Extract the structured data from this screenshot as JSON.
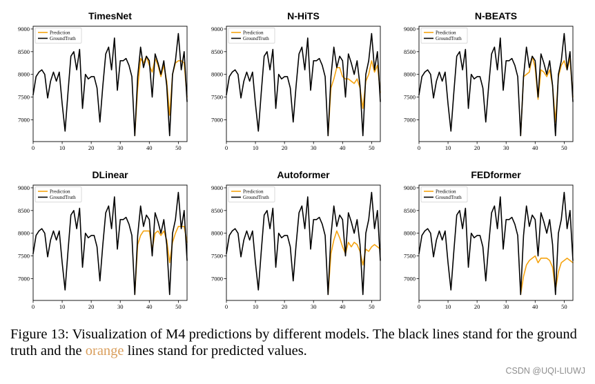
{
  "colors": {
    "prediction": "#f5a30f",
    "ground_truth": "#000000",
    "caption_highlight": "#d99e5c",
    "watermark": "#8e8e8e"
  },
  "chart_data": [
    {
      "type": "line",
      "title": "TimesNet",
      "xlim": [
        0,
        53
      ],
      "ylim": [
        6520,
        9060
      ],
      "xticks": [
        0,
        10,
        20,
        30,
        40,
        50
      ],
      "yticks": [
        7000,
        7500,
        8000,
        8500,
        9000
      ],
      "grid": false,
      "legend_loc": "upper-left",
      "series": [
        {
          "name": "Prediction",
          "color": "#f5a30f",
          "x": [
            35,
            36,
            37,
            38,
            39,
            40,
            41,
            42,
            43,
            44,
            45,
            46,
            47,
            48,
            49,
            50,
            51,
            52,
            53
          ],
          "values": [
            6650,
            7700,
            8350,
            8250,
            8400,
            8200,
            8050,
            8350,
            8200,
            7950,
            8200,
            7850,
            7100,
            8000,
            8250,
            8300,
            8300,
            8250,
            7500
          ]
        },
        {
          "name": "GroundTruth",
          "color": "#000000",
          "x": [
            0,
            1,
            2,
            3,
            4,
            5,
            6,
            7,
            8,
            9,
            10,
            11,
            12,
            13,
            14,
            15,
            16,
            17,
            18,
            19,
            20,
            21,
            22,
            23,
            24,
            25,
            26,
            27,
            28,
            29,
            30,
            31,
            32,
            33,
            34,
            35,
            36,
            37,
            38,
            39,
            40,
            41,
            42,
            43,
            44,
            45,
            46,
            47,
            48,
            49,
            50,
            51,
            52,
            53
          ],
          "values": [
            7550,
            7950,
            8050,
            8100,
            8000,
            7480,
            7850,
            8050,
            7850,
            8050,
            7350,
            6750,
            7600,
            8400,
            8500,
            8100,
            8550,
            7250,
            8000,
            7900,
            7950,
            7950,
            7700,
            6950,
            7750,
            8450,
            8600,
            8100,
            8800,
            7650,
            8300,
            8300,
            8350,
            8200,
            7950,
            6650,
            7950,
            8600,
            8150,
            8400,
            8300,
            7500,
            8450,
            8250,
            8000,
            8300,
            7750,
            6650,
            8000,
            8300,
            8900,
            8100,
            8500,
            7400
          ]
        }
      ]
    },
    {
      "type": "line",
      "title": "N-HiTS",
      "xlim": [
        0,
        53
      ],
      "ylim": [
        6520,
        9060
      ],
      "xticks": [
        0,
        10,
        20,
        30,
        40,
        50
      ],
      "yticks": [
        7000,
        7500,
        8000,
        8500,
        9000
      ],
      "grid": false,
      "legend_loc": "upper-left",
      "series": [
        {
          "name": "Prediction",
          "color": "#f5a30f",
          "x": [
            35,
            36,
            37,
            38,
            39,
            40,
            41,
            42,
            43,
            44,
            45,
            46,
            47,
            48,
            49,
            50,
            51,
            52,
            53
          ],
          "values": [
            6650,
            7700,
            7900,
            8150,
            8150,
            7950,
            7900,
            7900,
            7850,
            7800,
            7900,
            7700,
            7250,
            7850,
            8000,
            8300,
            8050,
            8200,
            7600
          ]
        },
        {
          "name": "GroundTruth",
          "color": "#000000",
          "x": [
            0,
            1,
            2,
            3,
            4,
            5,
            6,
            7,
            8,
            9,
            10,
            11,
            12,
            13,
            14,
            15,
            16,
            17,
            18,
            19,
            20,
            21,
            22,
            23,
            24,
            25,
            26,
            27,
            28,
            29,
            30,
            31,
            32,
            33,
            34,
            35,
            36,
            37,
            38,
            39,
            40,
            41,
            42,
            43,
            44,
            45,
            46,
            47,
            48,
            49,
            50,
            51,
            52,
            53
          ],
          "values": [
            7550,
            7950,
            8050,
            8100,
            8000,
            7480,
            7850,
            8050,
            7850,
            8050,
            7350,
            6750,
            7600,
            8400,
            8500,
            8100,
            8550,
            7250,
            8000,
            7900,
            7950,
            7950,
            7700,
            6950,
            7750,
            8450,
            8600,
            8100,
            8800,
            7650,
            8300,
            8300,
            8350,
            8200,
            7950,
            6650,
            7950,
            8600,
            8150,
            8400,
            8300,
            7500,
            8450,
            8250,
            8000,
            8300,
            7750,
            6650,
            8000,
            8300,
            8900,
            8100,
            8500,
            7400
          ]
        }
      ]
    },
    {
      "type": "line",
      "title": "N-BEATS",
      "xlim": [
        0,
        53
      ],
      "ylim": [
        6520,
        9060
      ],
      "xticks": [
        0,
        10,
        20,
        30,
        40,
        50
      ],
      "yticks": [
        7000,
        7500,
        8000,
        8500,
        9000
      ],
      "grid": false,
      "legend_loc": "upper-left",
      "series": [
        {
          "name": "Prediction",
          "color": "#f5a30f",
          "x": [
            35,
            36,
            37,
            38,
            39,
            40,
            41,
            42,
            43,
            44,
            45,
            46,
            47,
            48,
            49,
            50,
            51,
            52,
            53
          ],
          "values": [
            6650,
            7950,
            8000,
            8050,
            8400,
            8150,
            7450,
            8100,
            8050,
            7950,
            8100,
            7750,
            6950,
            7950,
            8200,
            8300,
            8100,
            8350,
            7500
          ]
        },
        {
          "name": "GroundTruth",
          "color": "#000000",
          "x": [
            0,
            1,
            2,
            3,
            4,
            5,
            6,
            7,
            8,
            9,
            10,
            11,
            12,
            13,
            14,
            15,
            16,
            17,
            18,
            19,
            20,
            21,
            22,
            23,
            24,
            25,
            26,
            27,
            28,
            29,
            30,
            31,
            32,
            33,
            34,
            35,
            36,
            37,
            38,
            39,
            40,
            41,
            42,
            43,
            44,
            45,
            46,
            47,
            48,
            49,
            50,
            51,
            52,
            53
          ],
          "values": [
            7550,
            7950,
            8050,
            8100,
            8000,
            7480,
            7850,
            8050,
            7850,
            8050,
            7350,
            6750,
            7600,
            8400,
            8500,
            8100,
            8550,
            7250,
            8000,
            7900,
            7950,
            7950,
            7700,
            6950,
            7750,
            8450,
            8600,
            8100,
            8800,
            7650,
            8300,
            8300,
            8350,
            8200,
            7950,
            6650,
            7950,
            8600,
            8150,
            8400,
            8300,
            7500,
            8450,
            8250,
            8000,
            8300,
            7750,
            6650,
            8000,
            8300,
            8900,
            8100,
            8500,
            7400
          ]
        }
      ]
    },
    {
      "type": "line",
      "title": "DLinear",
      "xlim": [
        0,
        53
      ],
      "ylim": [
        6520,
        9060
      ],
      "xticks": [
        0,
        10,
        20,
        30,
        40,
        50
      ],
      "yticks": [
        7000,
        7500,
        8000,
        8500,
        9000
      ],
      "grid": false,
      "legend_loc": "upper-left",
      "series": [
        {
          "name": "Prediction",
          "color": "#f5a30f",
          "x": [
            35,
            36,
            37,
            38,
            39,
            40,
            41,
            42,
            43,
            44,
            45,
            46,
            47,
            48,
            49,
            50,
            51,
            52,
            53
          ],
          "values": [
            6650,
            7750,
            7950,
            8050,
            8050,
            8050,
            7650,
            8000,
            8050,
            7950,
            8050,
            7850,
            7350,
            7800,
            8000,
            8150,
            8150,
            8150,
            7800
          ]
        },
        {
          "name": "GroundTruth",
          "color": "#000000",
          "x": [
            0,
            1,
            2,
            3,
            4,
            5,
            6,
            7,
            8,
            9,
            10,
            11,
            12,
            13,
            14,
            15,
            16,
            17,
            18,
            19,
            20,
            21,
            22,
            23,
            24,
            25,
            26,
            27,
            28,
            29,
            30,
            31,
            32,
            33,
            34,
            35,
            36,
            37,
            38,
            39,
            40,
            41,
            42,
            43,
            44,
            45,
            46,
            47,
            48,
            49,
            50,
            51,
            52,
            53
          ],
          "values": [
            7550,
            7950,
            8050,
            8100,
            8000,
            7480,
            7850,
            8050,
            7850,
            8050,
            7350,
            6750,
            7600,
            8400,
            8500,
            8100,
            8550,
            7250,
            8000,
            7900,
            7950,
            7950,
            7700,
            6950,
            7750,
            8450,
            8600,
            8100,
            8800,
            7650,
            8300,
            8300,
            8350,
            8200,
            7950,
            6650,
            7950,
            8600,
            8150,
            8400,
            8300,
            7500,
            8450,
            8250,
            8000,
            8300,
            7750,
            6650,
            8000,
            8300,
            8900,
            8100,
            8500,
            7400
          ]
        }
      ]
    },
    {
      "type": "line",
      "title": "Autoformer",
      "xlim": [
        0,
        53
      ],
      "ylim": [
        6520,
        9060
      ],
      "xticks": [
        0,
        10,
        20,
        30,
        40,
        50
      ],
      "yticks": [
        7000,
        7500,
        8000,
        8500,
        9000
      ],
      "grid": false,
      "legend_loc": "upper-left",
      "series": [
        {
          "name": "Prediction",
          "color": "#f5a30f",
          "x": [
            35,
            36,
            37,
            38,
            39,
            40,
            41,
            42,
            43,
            44,
            45,
            46,
            47,
            48,
            49,
            50,
            51,
            52,
            53
          ],
          "values": [
            6650,
            7550,
            7850,
            8050,
            7900,
            7700,
            7550,
            7800,
            7700,
            7800,
            7750,
            7600,
            7300,
            7650,
            7600,
            7700,
            7750,
            7700,
            7650
          ]
        },
        {
          "name": "GroundTruth",
          "color": "#000000",
          "x": [
            0,
            1,
            2,
            3,
            4,
            5,
            6,
            7,
            8,
            9,
            10,
            11,
            12,
            13,
            14,
            15,
            16,
            17,
            18,
            19,
            20,
            21,
            22,
            23,
            24,
            25,
            26,
            27,
            28,
            29,
            30,
            31,
            32,
            33,
            34,
            35,
            36,
            37,
            38,
            39,
            40,
            41,
            42,
            43,
            44,
            45,
            46,
            47,
            48,
            49,
            50,
            51,
            52,
            53
          ],
          "values": [
            7550,
            7950,
            8050,
            8100,
            8000,
            7480,
            7850,
            8050,
            7850,
            8050,
            7350,
            6750,
            7600,
            8400,
            8500,
            8100,
            8550,
            7250,
            8000,
            7900,
            7950,
            7950,
            7700,
            6950,
            7750,
            8450,
            8600,
            8100,
            8800,
            7650,
            8300,
            8300,
            8350,
            8200,
            7950,
            6650,
            7950,
            8600,
            8150,
            8400,
            8300,
            7500,
            8450,
            8250,
            8000,
            8300,
            7750,
            6650,
            8000,
            8300,
            8900,
            8100,
            8500,
            7400
          ]
        }
      ]
    },
    {
      "type": "line",
      "title": "FEDformer",
      "xlim": [
        0,
        53
      ],
      "ylim": [
        6520,
        9060
      ],
      "xticks": [
        0,
        10,
        20,
        30,
        40,
        50
      ],
      "yticks": [
        7000,
        7500,
        8000,
        8500,
        9000
      ],
      "grid": false,
      "legend_loc": "upper-left",
      "series": [
        {
          "name": "Prediction",
          "color": "#f5a30f",
          "x": [
            35,
            36,
            37,
            38,
            39,
            40,
            41,
            42,
            43,
            44,
            45,
            46,
            47,
            48,
            49,
            50,
            51,
            52,
            53
          ],
          "values": [
            6650,
            7050,
            7300,
            7400,
            7450,
            7500,
            7350,
            7450,
            7450,
            7450,
            7400,
            7250,
            6750,
            7150,
            7350,
            7400,
            7450,
            7400,
            7350
          ]
        },
        {
          "name": "GroundTruth",
          "color": "#000000",
          "x": [
            0,
            1,
            2,
            3,
            4,
            5,
            6,
            7,
            8,
            9,
            10,
            11,
            12,
            13,
            14,
            15,
            16,
            17,
            18,
            19,
            20,
            21,
            22,
            23,
            24,
            25,
            26,
            27,
            28,
            29,
            30,
            31,
            32,
            33,
            34,
            35,
            36,
            37,
            38,
            39,
            40,
            41,
            42,
            43,
            44,
            45,
            46,
            47,
            48,
            49,
            50,
            51,
            52,
            53
          ],
          "values": [
            7550,
            7950,
            8050,
            8100,
            8000,
            7480,
            7850,
            8050,
            7850,
            8050,
            7350,
            6750,
            7600,
            8400,
            8500,
            8100,
            8550,
            7250,
            8000,
            7900,
            7950,
            7950,
            7700,
            6950,
            7750,
            8450,
            8600,
            8100,
            8800,
            7650,
            8300,
            8300,
            8350,
            8200,
            7950,
            6650,
            7950,
            8600,
            8150,
            8400,
            8300,
            7500,
            8450,
            8250,
            8000,
            8300,
            7750,
            6650,
            8000,
            8300,
            8900,
            8100,
            8500,
            7400
          ]
        }
      ]
    }
  ],
  "caption": {
    "line1": "Figure 13: Visualization of M4 predictions by different models. The black lines stand for the ground",
    "line2_before": "truth and the ",
    "line2_highlight": "orange",
    "line2_after": " lines stand for predicted values."
  },
  "watermark": "CSDN @UQI-LIUWJ"
}
